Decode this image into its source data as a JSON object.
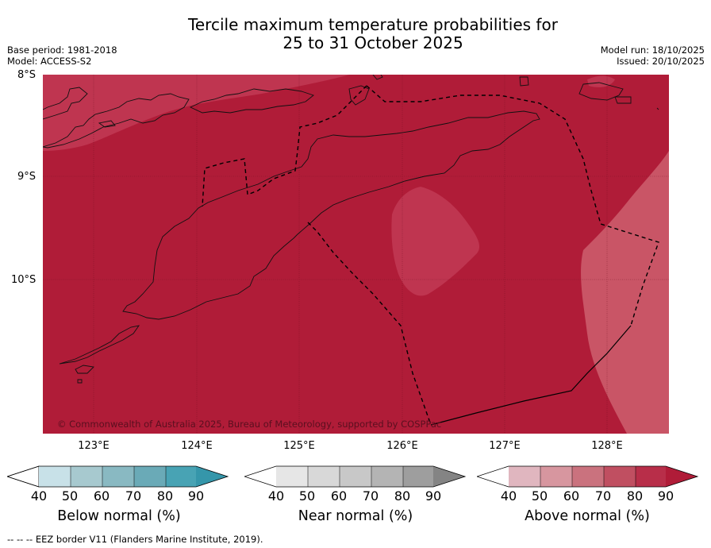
{
  "header": {
    "title_line1": "Tercile maximum temperature probabilities for",
    "title_line2": "25 to 31 October 2025",
    "base_period": "Base period: 1981-2018",
    "model": "Model: ACCESS-S2",
    "model_run": "Model run: 18/10/2025",
    "issued": "Issued: 20/10/2025"
  },
  "map": {
    "lat_labels": [
      "8°S",
      "9°S",
      "10°S"
    ],
    "lon_labels": [
      "123°E",
      "124°E",
      "125°E",
      "126°E",
      "127°E",
      "128°E"
    ],
    "copyright": "© Commonwealth of Australia 2025, Bureau of Meteorology, supported by COSPPac",
    "colors": {
      "above_90": "#b01c38",
      "above_80": "#bf3550",
      "above_70": "#c95566",
      "coast": "#111111",
      "eez": "#000000"
    }
  },
  "colorbars": [
    {
      "label": "Below normal (%)",
      "ticks": [
        "40",
        "50",
        "60",
        "70",
        "80",
        "90"
      ],
      "colors": [
        "#ffffff",
        "#c8e1e8",
        "#a7c9cf",
        "#89b9c2",
        "#6aaab7",
        "#48a3b4",
        "#3596aa"
      ]
    },
    {
      "label": "Near normal (%)",
      "ticks": [
        "40",
        "50",
        "60",
        "70",
        "80",
        "90"
      ],
      "colors": [
        "#ffffff",
        "#e6e6e6",
        "#d8d8d8",
        "#c8c8c8",
        "#b4b4b4",
        "#9e9e9e",
        "#848484"
      ]
    },
    {
      "label": "Above normal (%)",
      "ticks": [
        "40",
        "50",
        "60",
        "70",
        "80",
        "90"
      ],
      "colors": [
        "#ffffff",
        "#e0b6bf",
        "#d7969f",
        "#ca727e",
        "#c04f61",
        "#b82e49",
        "#b01c38"
      ]
    }
  ],
  "footer": {
    "eez_note": "--  --  -- EEZ border V11 (Flanders Marine Institute, 2019)."
  }
}
